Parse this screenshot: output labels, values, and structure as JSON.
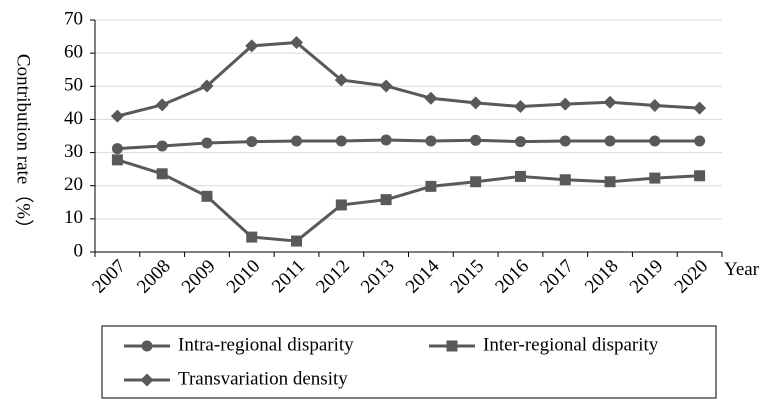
{
  "chart_data": {
    "type": "line",
    "categories": [
      "2007",
      "2008",
      "2009",
      "2010",
      "2011",
      "2012",
      "2013",
      "2014",
      "2015",
      "2016",
      "2017",
      "2018",
      "2019",
      "2020"
    ],
    "series": [
      {
        "name": "Intra-regional disparity",
        "marker": "circle",
        "values": [
          31.2,
          32.0,
          32.9,
          33.3,
          33.5,
          33.5,
          33.8,
          33.5,
          33.7,
          33.3,
          33.5,
          33.5,
          33.5,
          33.5
        ]
      },
      {
        "name": "Inter-regional disparity",
        "marker": "square",
        "values": [
          27.8,
          23.6,
          16.8,
          4.5,
          3.3,
          14.2,
          15.8,
          19.8,
          21.2,
          22.8,
          21.8,
          21.2,
          22.3,
          23.0
        ]
      },
      {
        "name": "Transvariation density",
        "marker": "diamond",
        "values": [
          41.0,
          44.4,
          50.1,
          62.2,
          63.2,
          51.9,
          50.1,
          46.4,
          45.0,
          43.9,
          44.6,
          45.2,
          44.2,
          43.4
        ]
      }
    ],
    "ylabel": "Contribution rate（%）",
    "xlabel": "Year",
    "ylim": [
      0,
      70
    ],
    "yticks": [
      0,
      10,
      20,
      30,
      40,
      50,
      60,
      70
    ],
    "grid": true,
    "legend_position": "bottom",
    "line_color": "#595959"
  }
}
